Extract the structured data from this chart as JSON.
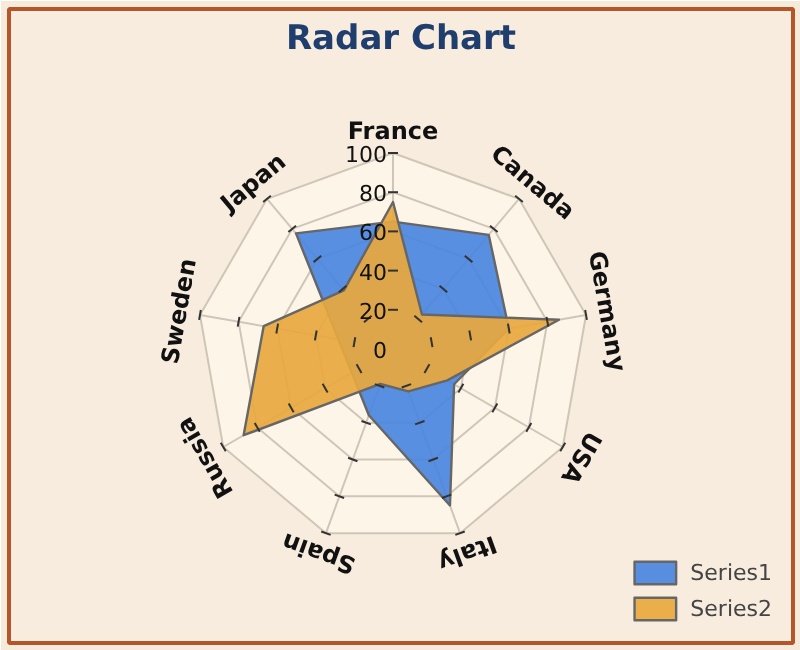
{
  "chart_data": {
    "type": "radar",
    "title": "Radar Chart",
    "categories": [
      "France",
      "Canada",
      "Germany",
      "USA",
      "Italy",
      "Spain",
      "Russia",
      "Sweden",
      "Japan"
    ],
    "series": [
      {
        "name": "Series1",
        "color": "#4a86e0",
        "values": [
          65,
          76,
          60,
          36,
          85,
          36,
          null,
          null,
          77
        ]
      },
      {
        "name": "Series2",
        "color": "#e8a83e",
        "values": [
          75,
          23,
          86,
          32,
          23,
          19,
          88,
          67,
          39
        ]
      }
    ],
    "ylim": [
      0,
      100
    ],
    "yticks": [
      0,
      20,
      40,
      60,
      80,
      100
    ],
    "grid": true,
    "legend": "bottom right"
  }
}
